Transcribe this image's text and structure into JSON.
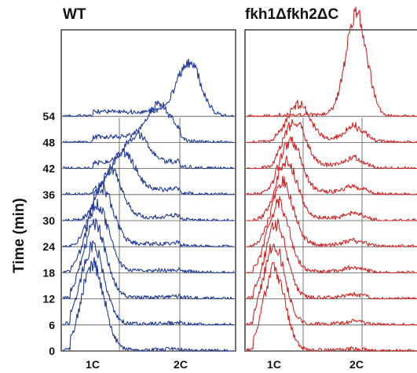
{
  "chart_data": [
    {
      "type": "line",
      "panel": "WT",
      "title": "WT",
      "ylabel": "Time (min)",
      "time_points": [
        0,
        6,
        12,
        18,
        24,
        30,
        36,
        42,
        48,
        54
      ],
      "x_ticks": [
        "1C",
        "2C"
      ],
      "grid": true,
      "color": "#1f3a9e",
      "series": [
        {
          "time": 0,
          "peak_content": 1.0,
          "peak_height": 5.5,
          "g2_content": 2.0,
          "g2_height": 0.1,
          "s_plateau": 0.1
        },
        {
          "time": 6,
          "peak_content": 1.0,
          "peak_height": 5.0,
          "g2_content": 2.0,
          "g2_height": 0.1,
          "s_plateau": 0.1
        },
        {
          "time": 12,
          "peak_content": 1.02,
          "peak_height": 4.7,
          "g2_content": 2.0,
          "g2_height": 0.1,
          "s_plateau": 0.15
        },
        {
          "time": 18,
          "peak_content": 1.05,
          "peak_height": 4.2,
          "g2_content": 2.0,
          "g2_height": 0.1,
          "s_plateau": 0.2
        },
        {
          "time": 24,
          "peak_content": 1.1,
          "peak_height": 3.6,
          "g2_content": 2.0,
          "g2_height": 0.1,
          "s_plateau": 0.3
        },
        {
          "time": 30,
          "peak_content": 1.2,
          "peak_height": 3.0,
          "g2_content": 2.0,
          "g2_height": 0.1,
          "s_plateau": 0.4
        },
        {
          "time": 36,
          "peak_content": 1.35,
          "peak_height": 2.4,
          "g2_content": 2.0,
          "g2_height": 0.1,
          "s_plateau": 0.5
        },
        {
          "time": 42,
          "peak_content": 1.5,
          "peak_height": 1.8,
          "g2_content": 2.0,
          "g2_height": 0.1,
          "s_plateau": 0.6
        },
        {
          "time": 48,
          "peak_content": 1.75,
          "peak_height": 2.1,
          "g2_content": 2.0,
          "g2_height": 0.1,
          "s_plateau": 0.6
        },
        {
          "time": 54,
          "peak_content": 2.1,
          "peak_height": 3.4,
          "g2_content": 2.0,
          "g2_height": 0.1,
          "s_plateau": 0.5
        }
      ]
    },
    {
      "type": "line",
      "panel": "fkh1Δfkh2ΔC",
      "title": "fkh1Δfkh2ΔC",
      "ylabel": "",
      "time_points": [
        0,
        6,
        12,
        18,
        24,
        30,
        36,
        42,
        48,
        54
      ],
      "x_ticks": [
        "1C",
        "2C"
      ],
      "grid": true,
      "color": "#d42626",
      "series": [
        {
          "time": 0,
          "peak_content": 1.0,
          "peak_height": 5.2,
          "g2_content": 2.0,
          "g2_height": 0.12,
          "s_plateau": 0.08
        },
        {
          "time": 6,
          "peak_content": 1.0,
          "peak_height": 5.0,
          "g2_content": 2.0,
          "g2_height": 0.2,
          "s_plateau": 0.1
        },
        {
          "time": 12,
          "peak_content": 1.02,
          "peak_height": 4.7,
          "g2_content": 2.0,
          "g2_height": 0.25,
          "s_plateau": 0.12
        },
        {
          "time": 18,
          "peak_content": 1.05,
          "peak_height": 4.4,
          "g2_content": 2.0,
          "g2_height": 0.3,
          "s_plateau": 0.15
        },
        {
          "time": 24,
          "peak_content": 1.1,
          "peak_height": 4.0,
          "g2_content": 2.0,
          "g2_height": 0.35,
          "s_plateau": 0.2
        },
        {
          "time": 30,
          "peak_content": 1.15,
          "peak_height": 3.6,
          "g2_content": 2.0,
          "g2_height": 0.4,
          "s_plateau": 0.25
        },
        {
          "time": 36,
          "peak_content": 1.2,
          "peak_height": 3.2,
          "g2_content": 2.0,
          "g2_height": 0.45,
          "s_plateau": 0.3
        },
        {
          "time": 42,
          "peak_content": 1.25,
          "peak_height": 2.8,
          "g2_content": 2.0,
          "g2_height": 0.5,
          "s_plateau": 0.35
        },
        {
          "time": 48,
          "peak_content": 1.3,
          "peak_height": 2.2,
          "g2_content": 2.0,
          "g2_height": 0.9,
          "s_plateau": 0.4
        },
        {
          "time": 54,
          "peak_content": 2.0,
          "peak_height": 3.3,
          "g2_content": 2.0,
          "g2_height": 3.3,
          "s_plateau": 0.15
        }
      ]
    }
  ]
}
